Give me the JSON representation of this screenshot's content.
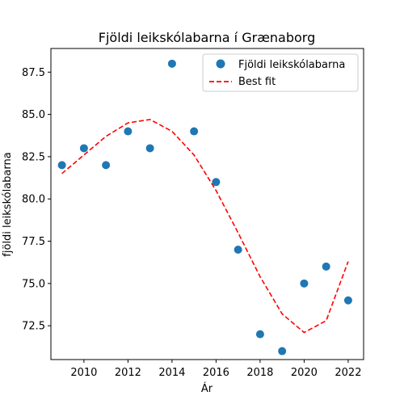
{
  "chart_data": {
    "type": "scatter",
    "title": "Fjöldi leikskólabarna í Grænaborg",
    "xlabel": "Ár",
    "ylabel": "fjöldi leikskólabarna",
    "xlim": [
      2008.5,
      2022.7
    ],
    "ylim": [
      70.5,
      88.9
    ],
    "xticks": [
      2010,
      2012,
      2014,
      2016,
      2018,
      2020,
      2022
    ],
    "yticks": [
      72.5,
      75.0,
      77.5,
      80.0,
      82.5,
      85.0,
      87.5
    ],
    "xtick_labels": [
      "2010",
      "2012",
      "2014",
      "2016",
      "2018",
      "2020",
      "2022"
    ],
    "ytick_labels": [
      "72.5",
      "75.0",
      "77.5",
      "80.0",
      "82.5",
      "85.0",
      "87.5"
    ],
    "grid": false,
    "legend_position": "top-right",
    "series": [
      {
        "name": "Fjöldi leikskólabarna",
        "kind": "scatter",
        "color": "#1f77b4",
        "x": [
          2009,
          2010,
          2011,
          2012,
          2013,
          2014,
          2015,
          2016,
          2017,
          2018,
          2019,
          2020,
          2021,
          2022
        ],
        "y": [
          82,
          83,
          82,
          84,
          83,
          88,
          84,
          81,
          77,
          72,
          71,
          75,
          76,
          74
        ]
      },
      {
        "name": "Best fit",
        "kind": "line",
        "style": "dashed",
        "color": "#ff0000",
        "x": [
          2009,
          2010,
          2011,
          2012,
          2013,
          2014,
          2015,
          2016,
          2017,
          2018,
          2019,
          2020,
          2021,
          2022
        ],
        "y": [
          81.5,
          82.6,
          83.7,
          84.5,
          84.7,
          84.0,
          82.6,
          80.5,
          78.0,
          75.4,
          73.2,
          72.1,
          72.8,
          76.3
        ]
      }
    ]
  }
}
